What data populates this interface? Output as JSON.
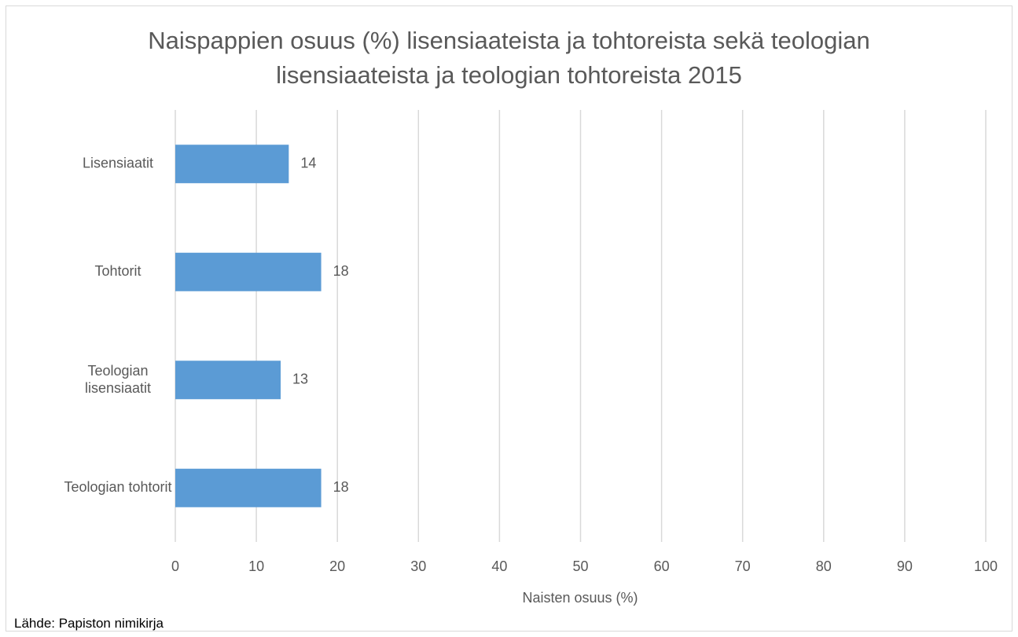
{
  "chart_data": {
    "type": "barh",
    "title": "Naispappien osuus (%) lisensiaateista ja tohtoreista sekä teologian\nlisensiaateista ja teologian tohtoreista 2015",
    "categories": [
      "Lisensiaatit",
      "Tohtorit",
      "Teologian\nlisensiaatit",
      "Teologian tohtorit"
    ],
    "values": [
      14,
      18,
      13,
      18
    ],
    "color": "#5b9bd5",
    "xlabel": "Naisten osuus (%)",
    "xlim": [
      0,
      100
    ],
    "xticks": [
      0,
      10,
      20,
      30,
      40,
      50,
      60,
      70,
      80,
      90,
      100
    ],
    "grid": true,
    "source": "Lähde: Papiston nimikirja"
  }
}
